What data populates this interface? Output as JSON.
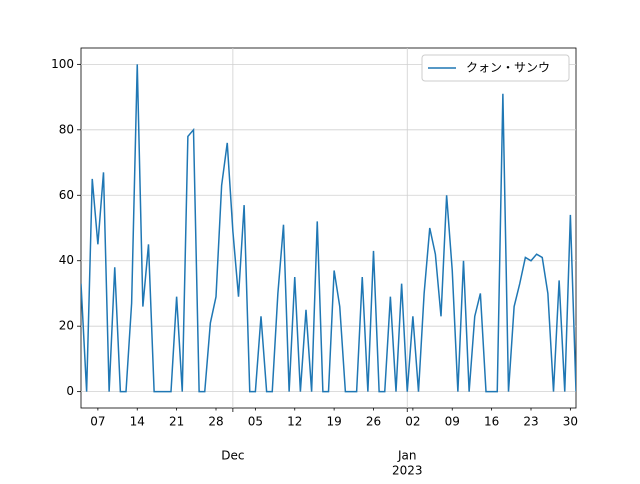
{
  "chart_data": {
    "type": "line",
    "x": [
      0,
      1,
      2,
      3,
      4,
      5,
      6,
      7,
      8,
      9,
      10,
      11,
      12,
      13,
      14,
      15,
      16,
      17,
      18,
      19,
      20,
      21,
      22,
      23,
      24,
      25,
      26,
      27,
      28,
      29,
      30,
      31,
      32,
      33,
      34,
      35,
      36,
      37,
      38,
      39,
      40,
      41,
      42,
      43,
      44,
      45,
      46,
      47,
      48,
      49,
      50,
      51,
      52,
      53,
      54,
      55,
      56,
      57,
      58,
      59,
      60,
      61,
      62,
      63,
      64,
      65,
      66,
      67,
      68,
      69,
      70,
      71,
      72,
      73,
      74,
      75,
      76,
      77,
      78,
      79,
      80,
      81,
      82,
      83,
      84,
      85,
      86,
      87,
      88
    ],
    "series": [
      {
        "name": "クォン・サンウ",
        "color": "#1f77b4",
        "values": [
          33,
          0,
          65,
          45,
          67,
          0,
          38,
          0,
          0,
          27,
          100,
          26,
          45,
          0,
          0,
          0,
          0,
          29,
          0,
          78,
          80,
          0,
          0,
          21,
          29,
          63,
          76,
          49,
          29,
          57,
          0,
          0,
          23,
          0,
          0,
          30,
          51,
          0,
          35,
          0,
          25,
          0,
          52,
          0,
          0,
          37,
          26,
          0,
          0,
          0,
          35,
          0,
          43,
          0,
          0,
          29,
          0,
          33,
          0,
          23,
          0,
          30,
          50,
          42,
          23,
          60,
          37,
          0,
          40,
          0,
          23,
          30,
          0,
          0,
          0,
          91,
          0,
          26,
          33,
          41,
          40,
          42,
          41,
          30,
          0,
          34,
          0,
          54,
          0
        ]
      }
    ],
    "xlim": [
      0,
      88
    ],
    "xticks": [
      {
        "value": 3,
        "label": "07"
      },
      {
        "value": 10,
        "label": "14"
      },
      {
        "value": 17,
        "label": "21"
      },
      {
        "value": 24,
        "label": "28"
      },
      {
        "value": 31,
        "label": "05"
      },
      {
        "value": 38,
        "label": "12"
      },
      {
        "value": 45,
        "label": "19"
      },
      {
        "value": 52,
        "label": "26"
      },
      {
        "value": 59,
        "label": "02"
      },
      {
        "value": 66,
        "label": "09"
      },
      {
        "value": 73,
        "label": "16"
      },
      {
        "value": 80,
        "label": "23"
      },
      {
        "value": 87,
        "label": "30"
      }
    ],
    "x_major_ticks": [
      {
        "value": 27,
        "label": "Dec"
      },
      {
        "value": 58,
        "label": "Jan"
      }
    ],
    "x_year_labels": [
      {
        "value": 58,
        "label": "2023"
      }
    ],
    "ylim": [
      -5,
      105
    ],
    "yticks": [
      0,
      20,
      40,
      60,
      80,
      100
    ],
    "grid": true,
    "legend": "upper right"
  }
}
